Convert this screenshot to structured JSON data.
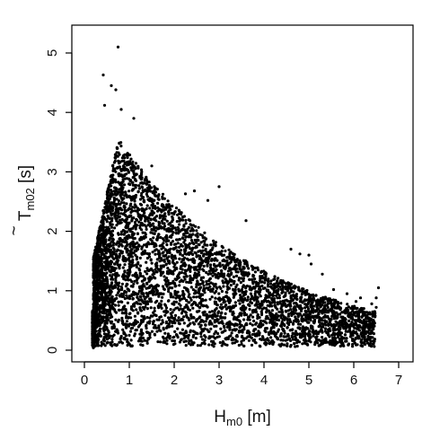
{
  "chart_data": {
    "type": "scatter",
    "xlabel_main": "H",
    "xlabel_sub": "m0",
    "xlabel_unit": " [m]",
    "ylabel_main": "T",
    "ylabel_tilde": "~",
    "ylabel_sub": "m02",
    "ylabel_unit": " [s]",
    "xlim": [
      0,
      7
    ],
    "ylim": [
      0,
      5.2
    ],
    "x_ticks": [
      "0",
      "1",
      "2",
      "3",
      "4",
      "5",
      "6",
      "7"
    ],
    "y_ticks": [
      "0",
      "1",
      "2",
      "3",
      "4",
      "5"
    ],
    "marker_color": "#000000",
    "outliers": [
      {
        "x": 0.75,
        "y": 5.1
      },
      {
        "x": 0.42,
        "y": 4.63
      },
      {
        "x": 0.6,
        "y": 4.45
      },
      {
        "x": 0.7,
        "y": 4.38
      },
      {
        "x": 0.45,
        "y": 4.12
      },
      {
        "x": 1.1,
        "y": 3.9
      },
      {
        "x": 0.82,
        "y": 4.05
      },
      {
        "x": 1.5,
        "y": 3.1
      },
      {
        "x": 2.25,
        "y": 2.63
      },
      {
        "x": 2.45,
        "y": 2.68
      },
      {
        "x": 2.75,
        "y": 2.52
      },
      {
        "x": 3.0,
        "y": 2.75
      },
      {
        "x": 2.35,
        "y": 2.18
      },
      {
        "x": 3.6,
        "y": 2.18
      },
      {
        "x": 4.6,
        "y": 1.7
      },
      {
        "x": 4.8,
        "y": 1.62
      },
      {
        "x": 5.0,
        "y": 1.6
      },
      {
        "x": 5.05,
        "y": 1.45
      },
      {
        "x": 5.3,
        "y": 1.28
      },
      {
        "x": 5.55,
        "y": 1.02
      },
      {
        "x": 5.85,
        "y": 0.95
      },
      {
        "x": 6.05,
        "y": 0.82
      },
      {
        "x": 6.15,
        "y": 0.88
      },
      {
        "x": 6.4,
        "y": 0.78
      },
      {
        "x": 6.5,
        "y": 0.88
      },
      {
        "x": 6.55,
        "y": 1.05
      },
      {
        "x": 6.5,
        "y": 0.72
      },
      {
        "x": 6.35,
        "y": 0.08
      },
      {
        "x": 6.1,
        "y": 0.2
      },
      {
        "x": 5.65,
        "y": 0.25
      },
      {
        "x": 5.3,
        "y": 0.3
      },
      {
        "x": 5.1,
        "y": 0.55
      },
      {
        "x": 4.2,
        "y": 0.1
      },
      {
        "x": 3.3,
        "y": 0.12
      },
      {
        "x": 0.2,
        "y": 0.04
      },
      {
        "x": 0.3,
        "y": 0.22
      }
    ]
  }
}
